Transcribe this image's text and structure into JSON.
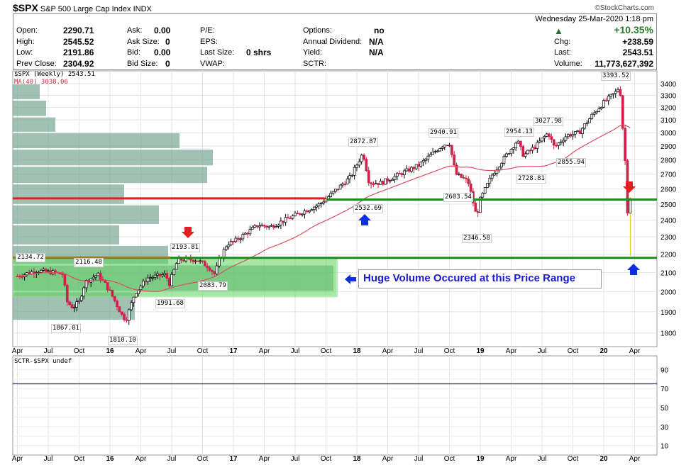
{
  "header": {
    "symbol": "$SPX",
    "name": "S&P 500 Large Cap Index",
    "exchange": "INDX",
    "brand": "©StockCharts.com",
    "datetime": "Wednesday  25-Mar-2020  1:18 pm",
    "open_label": "Open:",
    "open": "2290.71",
    "high_label": "High:",
    "high": "2545.52",
    "low_label": "Low:",
    "low": "2191.86",
    "prev_label": "Prev Close:",
    "prev": "2304.92",
    "ask_label": "Ask:",
    "ask": "0.00",
    "asksize_label": "Ask Size:",
    "asksize": "0",
    "bid_label": "Bid:",
    "bid": "0.00",
    "bidsize_label": "Bid Size:",
    "bidsize": "0",
    "pe_label": "P/E:",
    "eps_label": "EPS:",
    "lastsize_label": "Last Size:",
    "lastsize": "0 shrs",
    "vwap_label": "VWAP:",
    "options_label": "Options:",
    "options": "no",
    "div_label": "Annual Dividend:",
    "div": "N/A",
    "yield_label": "Yield:",
    "yield": "N/A",
    "sctr_label": "SCTR:",
    "pct": "+10.35%",
    "chg_label": "Chg:",
    "chg": "+238.59",
    "last_label": "Last:",
    "last": "2543.51",
    "vol_label": "Volume:",
    "volume": "11,773,627,392"
  },
  "legend": {
    "price": "$SPX (Weekly) 2543.51",
    "ma": "MA(40) 3038.06",
    "sctr": "SCTR-$SPX undef"
  },
  "annotation": "Huge Volume Occured at this Price Range",
  "labels": {
    "l1": "2134.72",
    "l2": "2116.48",
    "l3": "1867.01",
    "l4": "1810.10",
    "l5": "2193.81",
    "l6": "1991.68",
    "l7": "2083.79",
    "l8": "2872.87",
    "l9": "2532.69",
    "l10": "2940.91",
    "l11": "2603.54",
    "l12": "2346.58",
    "l13": "2954.13",
    "l14": "2728.81",
    "l15": "3027.98",
    "l16": "2855.94",
    "l17": "3393.52"
  },
  "colors": {
    "up": "#ffffff",
    "down": "#d0214a",
    "ma": "#d94e5e",
    "green": "#1a8a1a",
    "red": "#e02020",
    "vbp": "#6f9f8c",
    "box": "#5ed45e",
    "arrow_blue": "#1030e0"
  },
  "chart_data": {
    "type": "candlestick",
    "scale": "log",
    "ylim": [
      1750,
      3480
    ],
    "y_ticks": [
      1800,
      1900,
      2000,
      2100,
      2200,
      2300,
      2400,
      2500,
      2600,
      2700,
      2800,
      2900,
      3000,
      3100,
      3200,
      3300,
      3400
    ],
    "x_ticks": [
      "Apr",
      "Jul",
      "Oct",
      "16",
      "Apr",
      "Jul",
      "Oct",
      "17",
      "Apr",
      "Jul",
      "Oct",
      "18",
      "Apr",
      "Jul",
      "Oct",
      "19",
      "Apr",
      "Jul",
      "Oct",
      "20",
      "Apr"
    ],
    "price_anchors": [
      [
        2015.25,
        2080
      ],
      [
        2015.4,
        2110
      ],
      [
        2015.55,
        2100
      ],
      [
        2015.62,
        2090
      ],
      [
        2015.65,
        1950
      ],
      [
        2015.7,
        1920
      ],
      [
        2015.75,
        1950
      ],
      [
        2015.8,
        2050
      ],
      [
        2015.9,
        2090
      ],
      [
        2015.95,
        2050
      ],
      [
        2016.0,
        2000
      ],
      [
        2016.1,
        1880
      ],
      [
        2016.13,
        1860
      ],
      [
        2016.2,
        1990
      ],
      [
        2016.3,
        2070
      ],
      [
        2016.45,
        2090
      ],
      [
        2016.48,
        2040
      ],
      [
        2016.55,
        2170
      ],
      [
        2016.7,
        2170
      ],
      [
        2016.8,
        2130
      ],
      [
        2016.85,
        2090
      ],
      [
        2016.88,
        2160
      ],
      [
        2016.95,
        2260
      ],
      [
        2017.0,
        2270
      ],
      [
        2017.2,
        2370
      ],
      [
        2017.3,
        2360
      ],
      [
        2017.5,
        2430
      ],
      [
        2017.7,
        2500
      ],
      [
        2017.8,
        2570
      ],
      [
        2017.95,
        2680
      ],
      [
        2018.05,
        2850
      ],
      [
        2018.1,
        2640
      ],
      [
        2018.2,
        2640
      ],
      [
        2018.3,
        2680
      ],
      [
        2018.5,
        2760
      ],
      [
        2018.7,
        2910
      ],
      [
        2018.75,
        2920
      ],
      [
        2018.8,
        2700
      ],
      [
        2018.9,
        2650
      ],
      [
        2018.97,
        2420
      ],
      [
        2019.0,
        2530
      ],
      [
        2019.1,
        2700
      ],
      [
        2019.3,
        2940
      ],
      [
        2019.35,
        2830
      ],
      [
        2019.45,
        2900
      ],
      [
        2019.55,
        3000
      ],
      [
        2019.6,
        2890
      ],
      [
        2019.7,
        2980
      ],
      [
        2019.8,
        3000
      ],
      [
        2019.9,
        3130
      ],
      [
        2020.0,
        3240
      ],
      [
        2020.1,
        3330
      ],
      [
        2020.13,
        3380
      ],
      [
        2020.16,
        2950
      ],
      [
        2020.18,
        2710
      ],
      [
        2020.2,
        2300
      ],
      [
        2020.215,
        2543.51
      ]
    ],
    "ma_period": 40,
    "volume_by_price": [
      [
        1858,
        2000,
        172
      ],
      [
        2000,
        2142,
        452
      ],
      [
        2142,
        2252,
        219
      ],
      [
        2252,
        2373,
        150
      ],
      [
        2373,
        2497,
        206
      ],
      [
        2497,
        2634,
        157
      ],
      [
        2634,
        2755,
        274
      ],
      [
        2755,
        2878,
        282
      ],
      [
        2878,
        3002,
        235
      ],
      [
        3002,
        3125,
        60
      ],
      [
        3125,
        3262,
        47
      ],
      [
        3262,
        3400,
        38
      ]
    ],
    "hlines": [
      {
        "price": 2537,
        "color": "red"
      },
      {
        "price": 2530,
        "color": "green"
      },
      {
        "price": 2180,
        "color": "green"
      }
    ],
    "sctr": {
      "ylim": [
        0,
        100
      ],
      "y_ticks": [
        10,
        20,
        30,
        40,
        50,
        60,
        70,
        80,
        90
      ],
      "value": 75
    }
  }
}
